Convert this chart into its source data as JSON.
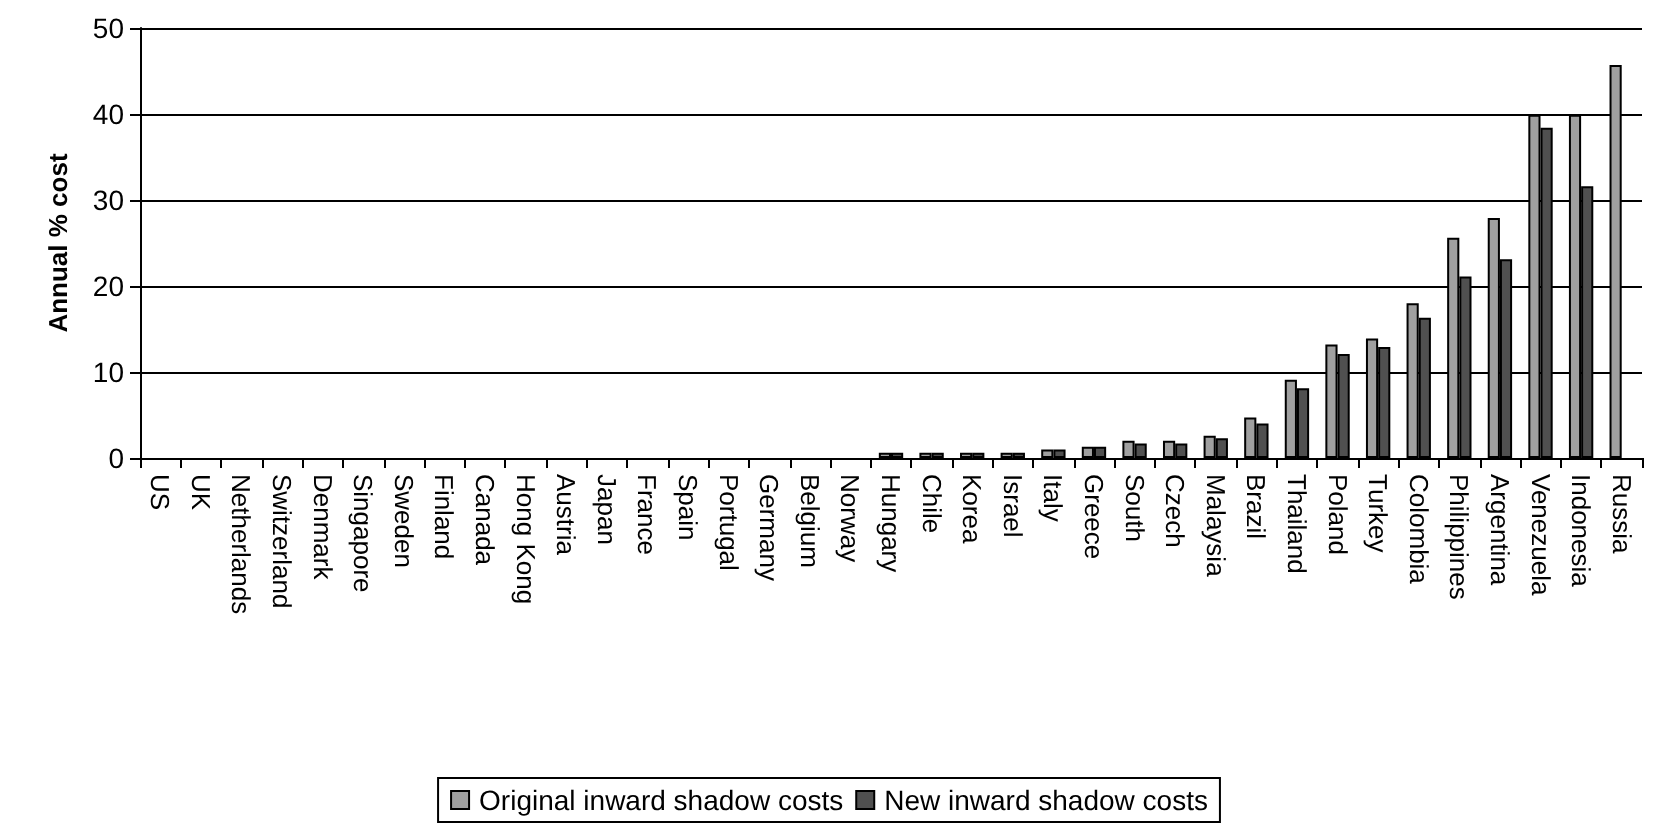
{
  "chart_data": {
    "type": "bar",
    "ylabel": "Annual % cost",
    "categories": [
      "US",
      "UK",
      "Netherlands",
      "Switzerland",
      "Denmark",
      "Singapore",
      "Sweden",
      "Finland",
      "Canada",
      "Hong Kong",
      "Austria",
      "Japan",
      "France",
      "Spain",
      "Portugal",
      "Germany",
      "Belgium",
      "Norway",
      "Hungary",
      "Chile",
      "Korea",
      "Israel",
      "Italy",
      "Greece",
      "South",
      "Czech",
      "Malaysia",
      "Brazil",
      "Thailand",
      "Poland",
      "Turkey",
      "Colombia",
      "Philippines",
      "Argentina",
      "Venezuela",
      "Indonesia",
      "Russia"
    ],
    "series": [
      {
        "name": "Original inward shadow costs",
        "color": "#a0a0a0",
        "values": [
          0,
          0,
          0,
          0,
          0,
          0,
          0,
          0,
          0,
          0,
          0,
          0,
          0,
          0,
          0,
          0,
          0,
          0,
          0.6,
          0.6,
          0.6,
          0.6,
          1,
          1.3,
          2,
          2,
          2.6,
          4.7,
          9.1,
          13.2,
          13.9,
          18,
          25.6,
          27.9,
          39.9,
          39.9,
          45.7
        ]
      },
      {
        "name": "New inward shadow costs",
        "color": "#505050",
        "values": [
          0,
          0,
          0,
          0,
          0,
          0,
          0,
          0,
          0,
          0,
          0,
          0,
          0,
          0,
          0,
          0,
          0,
          0,
          0.6,
          0.6,
          0.6,
          0.6,
          1,
          1.3,
          1.7,
          1.7,
          2.3,
          4,
          8.1,
          12.1,
          12.9,
          16.3,
          21.1,
          23.1,
          38.4,
          31.6,
          null
        ]
      }
    ],
    "ylim": [
      0,
      50
    ],
    "yticks": [
      0,
      10,
      20,
      30,
      40,
      50
    ],
    "grid": "y",
    "legend": "bottom"
  }
}
